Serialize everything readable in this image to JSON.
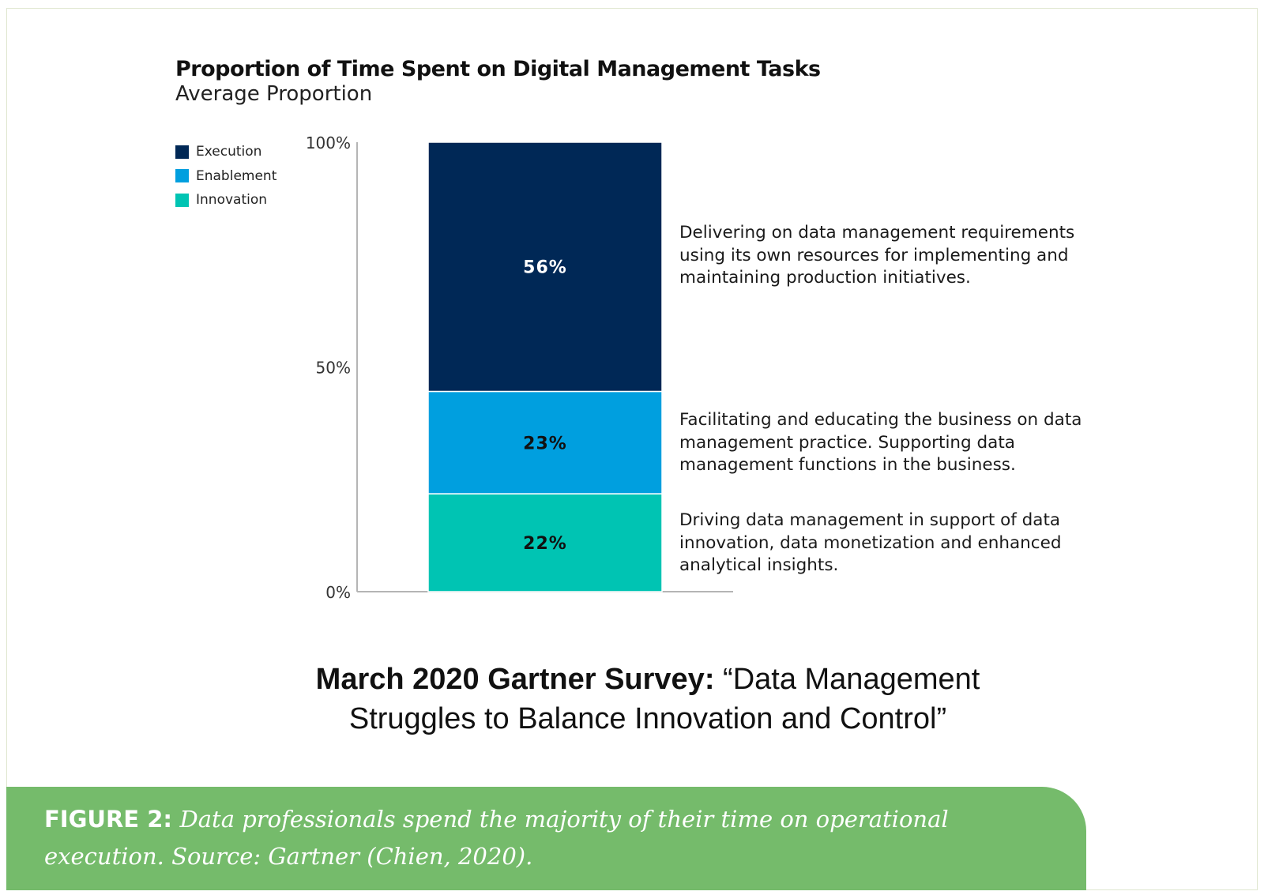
{
  "chart_data": {
    "type": "bar",
    "stacked": true,
    "title": "Proportion of Time Spent on Digital Management Tasks",
    "subtitle": "Average Proportion",
    "categories": [
      ""
    ],
    "ylim": [
      0,
      100
    ],
    "yticks": [
      "0%",
      "50%",
      "100%"
    ],
    "ytick_values": [
      0,
      50,
      100
    ],
    "grid": false,
    "legend_position": "top-left",
    "series": [
      {
        "name": "Innovation",
        "values": [
          22
        ],
        "label": "22%",
        "color": "#00c4b3",
        "label_color": "#111111",
        "annotation": "Driving data management in support of data innovation, data monetization and enhanced analytical insights."
      },
      {
        "name": "Enablement",
        "values": [
          23
        ],
        "label": "23%",
        "color": "#009fdf",
        "label_color": "#111111",
        "annotation": "Facilitating and educating the business on data management practice. Supporting data management functions in the business."
      },
      {
        "name": "Execution",
        "values": [
          56
        ],
        "label": "56%",
        "color": "#002856",
        "label_color": "#ffffff",
        "annotation": "Delivering on data management requirements using its own resources for implementing and maintaining production initiatives."
      }
    ]
  },
  "legend_order": [
    "Execution",
    "Enablement",
    "Innovation"
  ],
  "survey_caption": {
    "bold": "March 2020 Gartner Survey:",
    "rest": " “Data Management Struggles to Balance Innovation and Control”"
  },
  "figure": {
    "label": "FIGURE 2:",
    "text": "Data professionals spend the majority of their time on operational execution. Source: Gartner (Chien, 2020).",
    "bar_color": "#75bb6b"
  }
}
